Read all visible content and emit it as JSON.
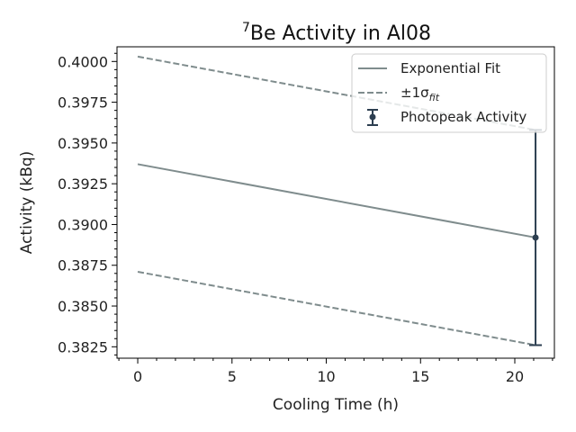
{
  "chart_data": {
    "type": "line",
    "title": {
      "superscript": "7",
      "text": "Be Activity in Al08"
    },
    "xlabel": "Cooling Time (h)",
    "ylabel": "Activity (kBq)",
    "xlim": [
      -1.1,
      22.1
    ],
    "ylim": [
      0.3818,
      0.4009
    ],
    "x_ticks": [
      0,
      5,
      10,
      15,
      20
    ],
    "x_tick_labels": [
      "0",
      "5",
      "10",
      "15",
      "20"
    ],
    "y_ticks": [
      0.3825,
      0.385,
      0.3875,
      0.39,
      0.3925,
      0.395,
      0.3975,
      0.4
    ],
    "y_tick_labels": [
      "0.3825",
      "0.3850",
      "0.3875",
      "0.3900",
      "0.3925",
      "0.3950",
      "0.3975",
      "0.4000"
    ],
    "x_minor_step": 1,
    "y_minor_step": 0.0005,
    "grid": false,
    "legend_position": "top-right",
    "series": [
      {
        "name": "Exponential Fit",
        "style": "solid",
        "color": "#7f8c8d",
        "x": [
          0,
          21.1
        ],
        "y": [
          0.3937,
          0.3892
        ]
      },
      {
        "name": "±1σ",
        "name_subscript": "fit",
        "style": "dashed",
        "color": "#7f8c8d",
        "x": [
          0,
          21.1
        ],
        "y": [
          0.4003,
          0.3958
        ]
      },
      {
        "name": "",
        "style": "dashed",
        "color": "#7f8c8d",
        "x": [
          0,
          21.1
        ],
        "y": [
          0.3871,
          0.3826
        ]
      },
      {
        "name": "Photopeak Activity",
        "style": "errorbar",
        "color": "#2c3e50",
        "x": [
          21.1
        ],
        "y": [
          0.3892
        ],
        "yerr_low": [
          0.3826
        ],
        "yerr_high": [
          0.3958
        ]
      }
    ]
  }
}
